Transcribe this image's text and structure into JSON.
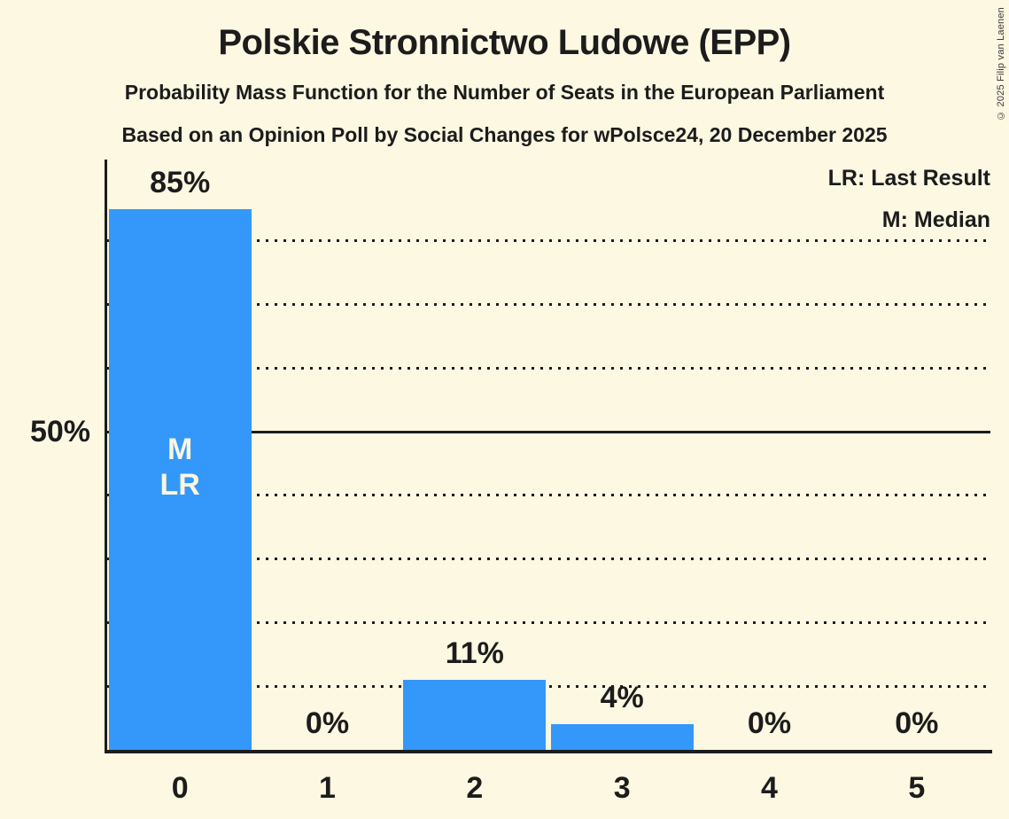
{
  "chart_data": {
    "type": "bar",
    "title": "Polskie Stronnictwo Ludowe (EPP)",
    "subtitle_line1": "Probability Mass Function for the Number of Seats in the European Parliament",
    "subtitle_line2": "Based on an Opinion Poll by Social Changes for wPolsce24, 20 December 2025",
    "categories": [
      "0",
      "1",
      "2",
      "3",
      "4",
      "5"
    ],
    "values": [
      85,
      0,
      11,
      4,
      0,
      0
    ],
    "value_labels": [
      "85%",
      "0%",
      "11%",
      "4%",
      "0%",
      "0%"
    ],
    "y_tick_label": "50%",
    "y_tick_pct": 50,
    "gridlines_pct": [
      10,
      20,
      30,
      40,
      50,
      60,
      70,
      80
    ],
    "solid_gridline_pct": 50,
    "ylim": [
      0,
      93
    ],
    "grid": "dotted-horizontal",
    "legend": [
      "LR: Last Result",
      "M: Median"
    ],
    "legend_position": "top-right",
    "annotations": [
      {
        "column": 0,
        "lines": [
          "M",
          "LR"
        ]
      }
    ],
    "median_seats": 0,
    "last_result_seats": 0,
    "copyright": "© 2025 Filip van Laenen",
    "colors": {
      "background": "#FDF8E2",
      "bar": "#3398FA",
      "text": "#1C1C1C",
      "bar_annotation_text": "#FBF6E2"
    }
  }
}
